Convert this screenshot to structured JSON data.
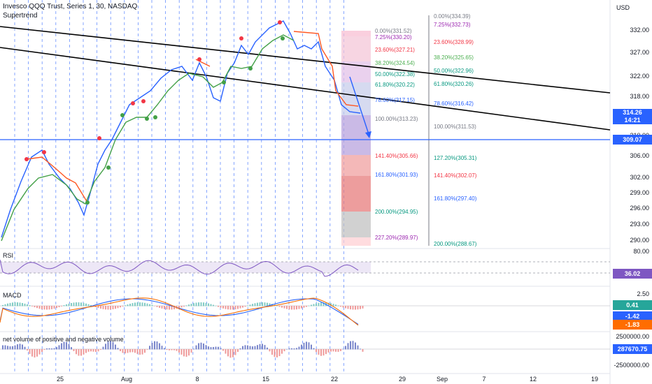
{
  "header": {
    "title": "Invesco QQQ Trust, Series 1, 30, NASDAQ",
    "indicator": "Supertrend",
    "currency": "USD"
  },
  "panes": {
    "rsi": "RSI",
    "macd": "MACD",
    "volume": "net volume of positive and negative volume"
  },
  "price_axis": [
    "332.00",
    "327.00",
    "322.00",
    "318.00",
    "310.00",
    "306.00",
    "302.00",
    "299.00",
    "296.00",
    "293.00",
    "290.00"
  ],
  "rsi_axis": [
    "80.00"
  ],
  "macd_axis": [
    "2.50"
  ],
  "vol_axis": [
    "2500000.00",
    "-2500000.00"
  ],
  "tags": {
    "price": "314.26",
    "countdown": "14:21",
    "hline": "309.07",
    "rsi": "36.02",
    "macd1": "0.41",
    "macd2": "-1.42",
    "macd3": "-1.83",
    "vol": "287670.75"
  },
  "x_ticks": [
    "25",
    "Aug",
    "8",
    "15",
    "22",
    "29",
    "Sep",
    "7",
    "12",
    "19"
  ],
  "fib_left": [
    {
      "label": "0.00%(331.52)",
      "color": "#787b86"
    },
    {
      "label": "7.25%(330.20)",
      "color": "#9c27b0"
    },
    {
      "label": "23.60%(327.21)",
      "color": "#f23645"
    },
    {
      "label": "38.20%(324.54)",
      "color": "#4caf50"
    },
    {
      "label": "50.00%(322.38)",
      "color": "#089981"
    },
    {
      "label": "61.80%(320.22)",
      "color": "#089981"
    },
    {
      "label": "78.60%(317.15)",
      "color": "#2962ff"
    },
    {
      "label": "100.00%(313.23)",
      "color": "#787b86"
    },
    {
      "label": "141.40%(305.66)",
      "color": "#f23645"
    },
    {
      "label": "161.80%(301.93)",
      "color": "#2962ff"
    },
    {
      "label": "200.00%(294.95)",
      "color": "#089981"
    },
    {
      "label": "227.20%(289.97)",
      "color": "#9c27b0"
    }
  ],
  "fib_right": [
    {
      "label": "0.00%(334.39)",
      "color": "#787b86"
    },
    {
      "label": "7.25%(332.73)",
      "color": "#9c27b0"
    },
    {
      "label": "23.60%(328.99)",
      "color": "#f23645"
    },
    {
      "label": "38.20%(325.65)",
      "color": "#4caf50"
    },
    {
      "label": "50.00%(322.96)",
      "color": "#089981"
    },
    {
      "label": "61.80%(320.26)",
      "color": "#089981"
    },
    {
      "label": "78.60%(316.42)",
      "color": "#2962ff"
    },
    {
      "label": "100.00%(311.53)",
      "color": "#787b86"
    },
    {
      "label": "127.20%(305.31)",
      "color": "#089981"
    },
    {
      "label": "141.40%(302.07)",
      "color": "#f23645"
    },
    {
      "label": "161.80%(297.40)",
      "color": "#2962ff"
    },
    {
      "label": "200.00%(288.67)",
      "color": "#089981"
    }
  ],
  "colors": {
    "up": "#089981",
    "down": "#f23645",
    "candle": "#2962ff",
    "supertrend_up": "#43a047",
    "supertrend_down": "#ff5722",
    "hline": "#2962ff",
    "trend": "#000000"
  }
}
